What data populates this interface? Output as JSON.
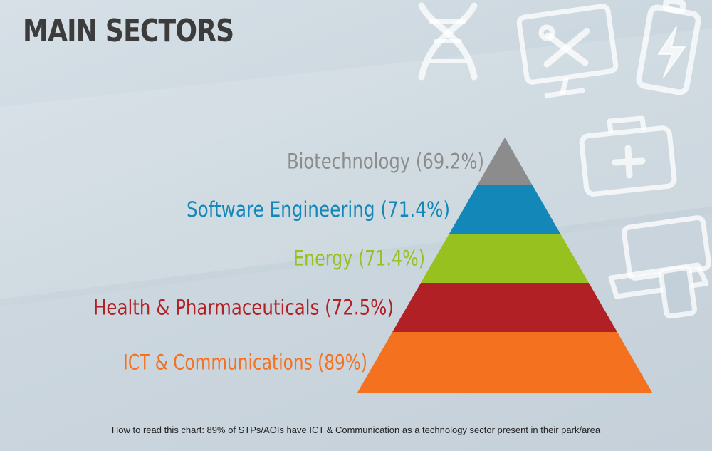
{
  "title": "MAIN SECTORS",
  "caption": "How to read this chart: 89% of STPs/AOIs have ICT & Communication as a technology sector present in their park/area",
  "icons": [
    "dna-icon",
    "monitor-tools-icon",
    "battery-icon",
    "medical-kit-icon",
    "laptop-phone-icon"
  ],
  "chart_data": {
    "type": "pyramid",
    "title": "MAIN SECTORS",
    "order": "top-to-bottom",
    "segments": [
      {
        "label": "Biotechnology (69.2%)",
        "category": "Biotechnology",
        "value": 69.2,
        "color": "#8c8c8c"
      },
      {
        "label": "Software Engineering (71.4%)",
        "category": "Software Engineering",
        "value": 71.4,
        "color": "#1287b8"
      },
      {
        "label": "Energy (71.4%)",
        "category": "Energy",
        "value": 71.4,
        "color": "#96c11f"
      },
      {
        "label": "Health & Pharmaceuticals (72.5%)",
        "category": "Health & Pharmaceuticals",
        "value": 72.5,
        "color": "#b12025"
      },
      {
        "label": "ICT & Communications (89%)",
        "category": "ICT & Communications",
        "value": 89,
        "color": "#f4711f"
      }
    ]
  }
}
